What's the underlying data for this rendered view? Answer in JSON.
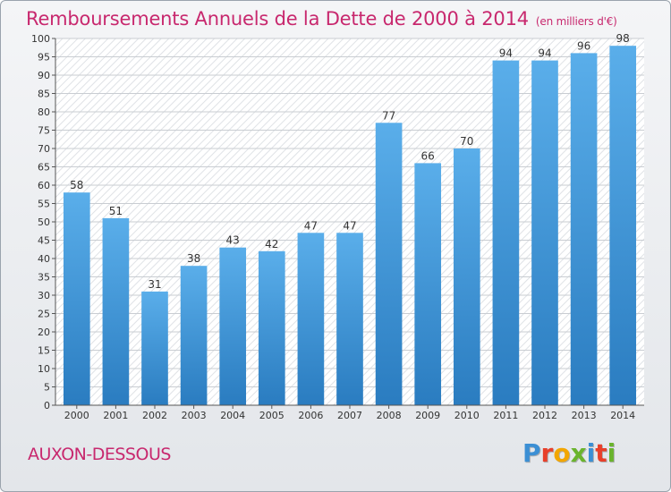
{
  "title": "Remboursements Annuels de la Dette de 2000 à 2014",
  "unit": "(en milliers d'€)",
  "location": "AUXON-DESSOUS",
  "brand": "Proxiti",
  "colors": {
    "title": "#c8286e",
    "bar_top": "#5aaeea",
    "bar_bottom": "#2a7cc0",
    "brand_letters": [
      "#3b8fd4",
      "#e8402a",
      "#f2a600",
      "#6ab42d",
      "#3b8fd4",
      "#e8402a",
      "#6ab42d"
    ]
  },
  "chart_data": {
    "type": "bar",
    "title": "Remboursements Annuels de la Dette de 2000 à 2014",
    "xlabel": "",
    "ylabel": "",
    "categories": [
      "2000",
      "2001",
      "2002",
      "2003",
      "2004",
      "2005",
      "2006",
      "2007",
      "2008",
      "2009",
      "2010",
      "2011",
      "2012",
      "2013",
      "2014"
    ],
    "values": [
      58,
      51,
      31,
      38,
      43,
      42,
      47,
      47,
      77,
      66,
      70,
      94,
      94,
      96,
      98
    ],
    "ylim": [
      0,
      100
    ],
    "yticks": [
      0,
      5,
      10,
      15,
      20,
      25,
      30,
      35,
      40,
      45,
      50,
      55,
      60,
      65,
      70,
      75,
      80,
      85,
      90,
      95,
      100
    ],
    "grid": true,
    "data_labels": true
  }
}
